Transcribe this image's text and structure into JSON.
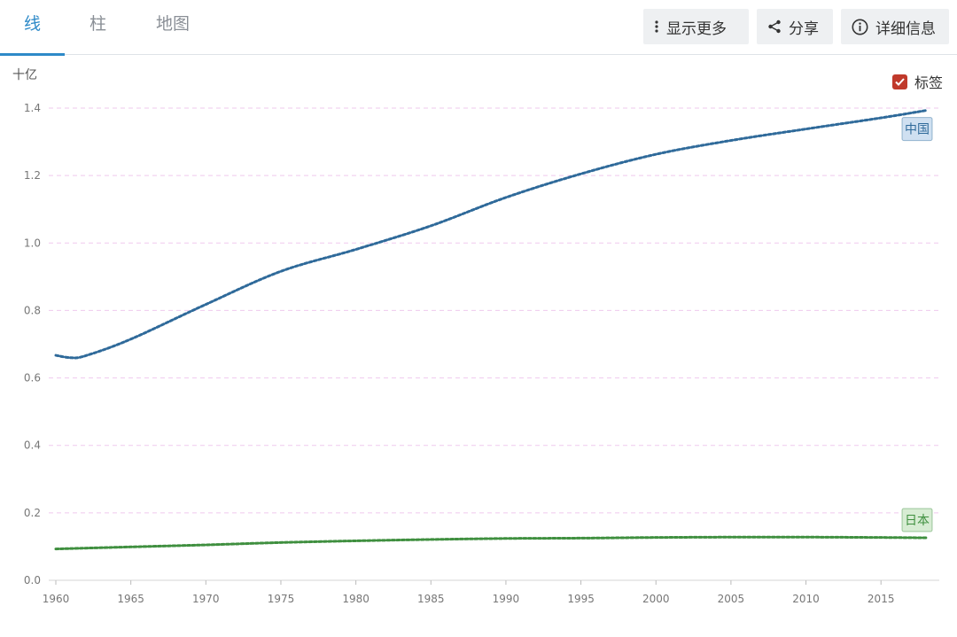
{
  "tabs": [
    {
      "label": "线",
      "active": true
    },
    {
      "label": "柱",
      "active": false
    },
    {
      "label": "地图",
      "active": false
    }
  ],
  "toolbar": {
    "more_label": "显示更多",
    "share_label": "分享",
    "info_label": "详细信息"
  },
  "legend_toggle": {
    "label": "标签",
    "checked": true
  },
  "chart_data": {
    "type": "line",
    "unit_label": "十亿",
    "xlim": [
      1960,
      2018
    ],
    "ylim": [
      0,
      1.4
    ],
    "x_ticks": [
      "1960",
      "1965",
      "1970",
      "1975",
      "1980",
      "1985",
      "1990",
      "1995",
      "2000",
      "2005",
      "2010",
      "2015"
    ],
    "y_ticks": [
      "0.0",
      "0.2",
      "0.4",
      "0.6",
      "0.8",
      "1.0",
      "1.2",
      "1.4"
    ],
    "grid": true,
    "series": [
      {
        "name": "中国",
        "color": "#2f6a9a",
        "label_bg": "#cfe0f1",
        "x": [
          1960,
          1961,
          1962,
          1965,
          1970,
          1975,
          1980,
          1985,
          1990,
          1995,
          2000,
          2005,
          2010,
          2015,
          2018
        ],
        "values": [
          0.667,
          0.66,
          0.666,
          0.715,
          0.818,
          0.916,
          0.981,
          1.051,
          1.135,
          1.205,
          1.263,
          1.304,
          1.338,
          1.371,
          1.393
        ]
      },
      {
        "name": "日本",
        "color": "#3f8f3f",
        "label_bg": "#d7ecd3",
        "x": [
          1960,
          1965,
          1970,
          1975,
          1980,
          1985,
          1990,
          1995,
          2000,
          2005,
          2010,
          2015,
          2018
        ],
        "values": [
          0.093,
          0.099,
          0.105,
          0.112,
          0.117,
          0.121,
          0.124,
          0.125,
          0.127,
          0.128,
          0.128,
          0.127,
          0.126
        ]
      }
    ]
  }
}
